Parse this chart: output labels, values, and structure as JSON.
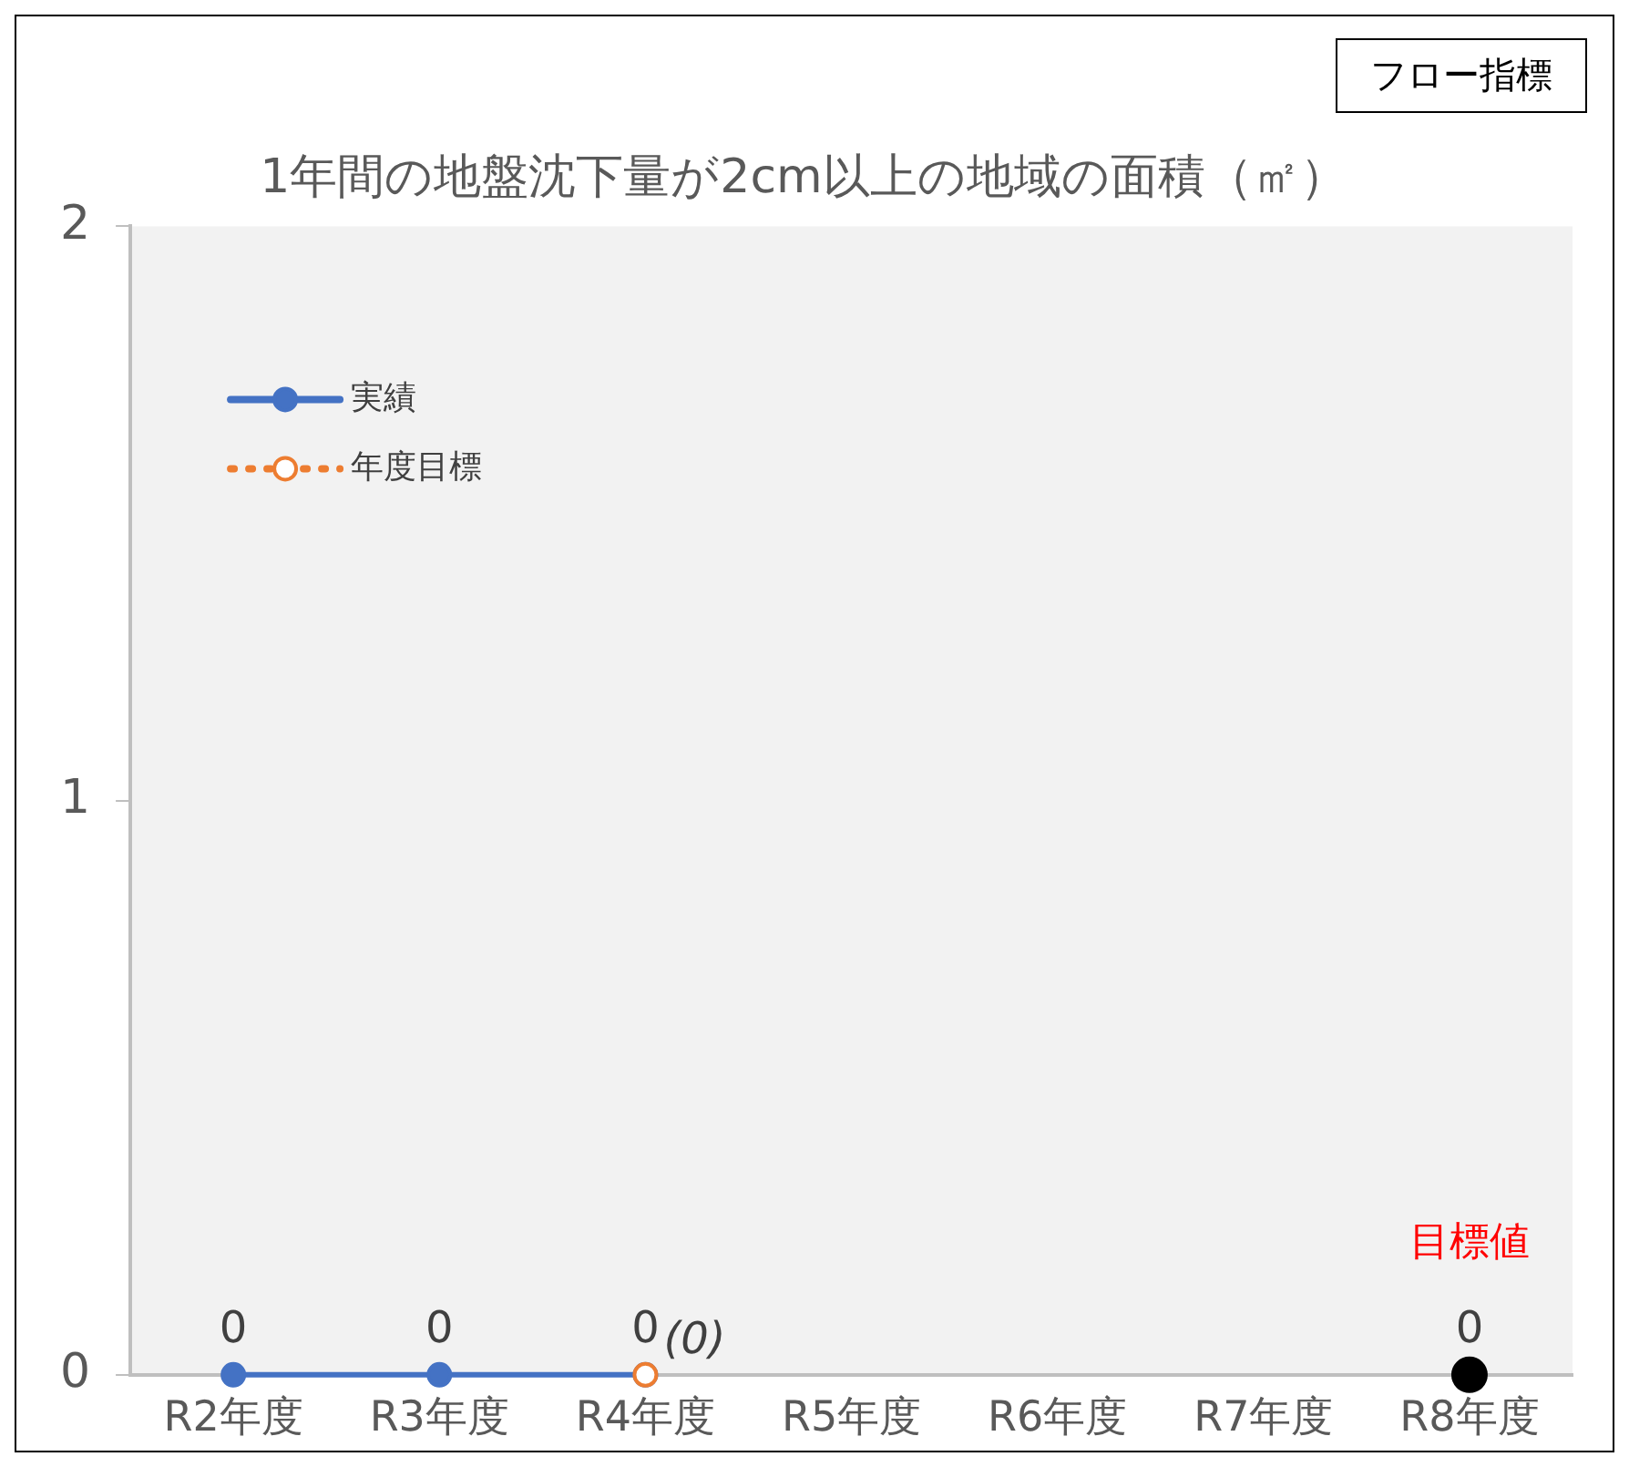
{
  "chart_data": {
    "type": "line",
    "title": "1年間の地盤沈下量が2cm以上の地域の面積（㎡）",
    "annotations": [
      "フロー指標"
    ],
    "categories": [
      "R2年度",
      "R3年度",
      "R4年度",
      "R5年度",
      "R6年度",
      "R7年度",
      "R8年度"
    ],
    "series": [
      {
        "name": "実績",
        "color": "#4472c4",
        "values": [
          0,
          0,
          0,
          null,
          null,
          null,
          null
        ],
        "value_labels": [
          "0",
          "0",
          "0",
          null,
          null,
          null,
          null
        ],
        "marker": "circle",
        "line_style": "solid"
      },
      {
        "name": "年度目標",
        "color": "#ed7d31",
        "values": [
          null,
          null,
          0,
          null,
          null,
          null,
          null
        ],
        "value_labels": [
          null,
          null,
          "(0)",
          null,
          null,
          null,
          null
        ],
        "marker": "circle",
        "line_style": "dotted"
      },
      {
        "name": "目標値",
        "type": "scatter",
        "color": "#000000",
        "values": [
          null,
          null,
          null,
          null,
          null,
          null,
          0
        ],
        "value_labels": [
          null,
          null,
          null,
          null,
          null,
          null,
          "0"
        ],
        "marker": "circle"
      }
    ],
    "ylim": [
      0,
      2
    ],
    "yticks": [
      0,
      1,
      2
    ],
    "grid": false,
    "legend": "top left"
  }
}
